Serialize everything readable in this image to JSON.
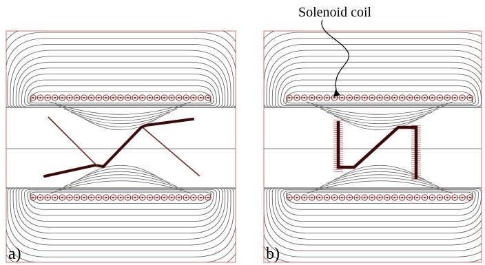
{
  "panels": [
    {
      "id": "a",
      "label": "a)"
    },
    {
      "id": "b",
      "label": "b)"
    }
  ],
  "annotation": {
    "text": "Solenoid coil"
  },
  "colors": {
    "frame": "#d98a8a",
    "field_line": "#555555",
    "conductor": "#3a0a0a",
    "coil": "#7a2020"
  }
}
